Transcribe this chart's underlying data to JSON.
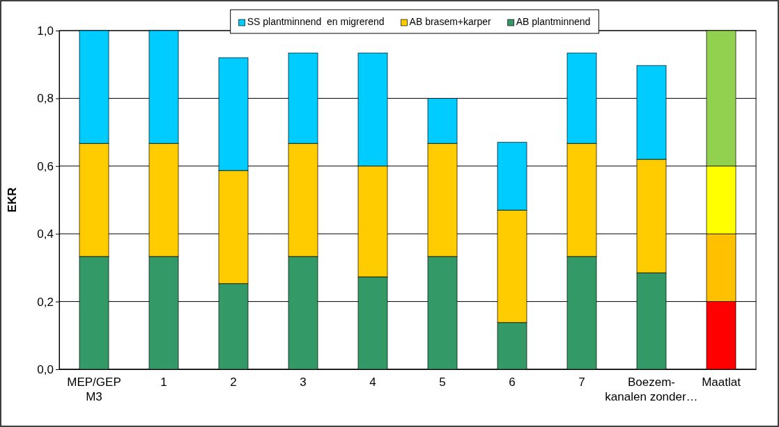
{
  "chart_data": {
    "type": "bar",
    "stacked": true,
    "ylabel": "EKR",
    "categories": [
      "MEP/GEP M3",
      "1",
      "2",
      "3",
      "4",
      "5",
      "6",
      "7",
      "Boezem-kanalen zonder…",
      "Maatlat"
    ],
    "series": [
      {
        "name": "AB plantminnend",
        "color": "#339966",
        "values": [
          0.333,
          0.333,
          0.253,
          0.333,
          0.273,
          0.333,
          0.138,
          0.333,
          0.285,
          0.2
        ],
        "colors": [
          "#339966",
          "#339966",
          "#339966",
          "#339966",
          "#339966",
          "#339966",
          "#339966",
          "#339966",
          "#339966",
          "#ff0000"
        ]
      },
      {
        "name": "AB brasem+karper",
        "color": "#ffcc00",
        "values": [
          0.334,
          0.334,
          0.334,
          0.334,
          0.327,
          0.334,
          0.332,
          0.334,
          0.335,
          0.2
        ],
        "colors": [
          "#ffcc00",
          "#ffcc00",
          "#ffcc00",
          "#ffcc00",
          "#ffcc00",
          "#ffcc00",
          "#ffcc00",
          "#ffcc00",
          "#ffcc00",
          "#ffc000"
        ]
      },
      {
        "name": "SS plantminnend  en migrerend",
        "color": "#00ccff",
        "values": [
          0.333,
          0.333,
          0.333,
          0.267,
          0.334,
          0.133,
          0.2,
          0.267,
          0.277,
          0.2
        ],
        "colors": [
          "#00ccff",
          "#00ccff",
          "#00ccff",
          "#00ccff",
          "#00ccff",
          "#00ccff",
          "#00ccff",
          "#00ccff",
          "#00ccff",
          "#ffff00"
        ]
      },
      {
        "color": "#92d050",
        "values": [
          null,
          null,
          null,
          null,
          null,
          null,
          null,
          null,
          null,
          0.4
        ]
      }
    ],
    "ylim": [
      0,
      1
    ],
    "yticks": [
      {
        "value": 0,
        "label": "0,0"
      },
      {
        "value": 0.2,
        "label": "0,2"
      },
      {
        "value": 0.4,
        "label": "0,4"
      },
      {
        "value": 0.6,
        "label": "0,6"
      },
      {
        "value": 0.8,
        "label": "0,8"
      },
      {
        "value": 1,
        "label": "1,0"
      }
    ],
    "grid": "y",
    "legend": "top"
  }
}
